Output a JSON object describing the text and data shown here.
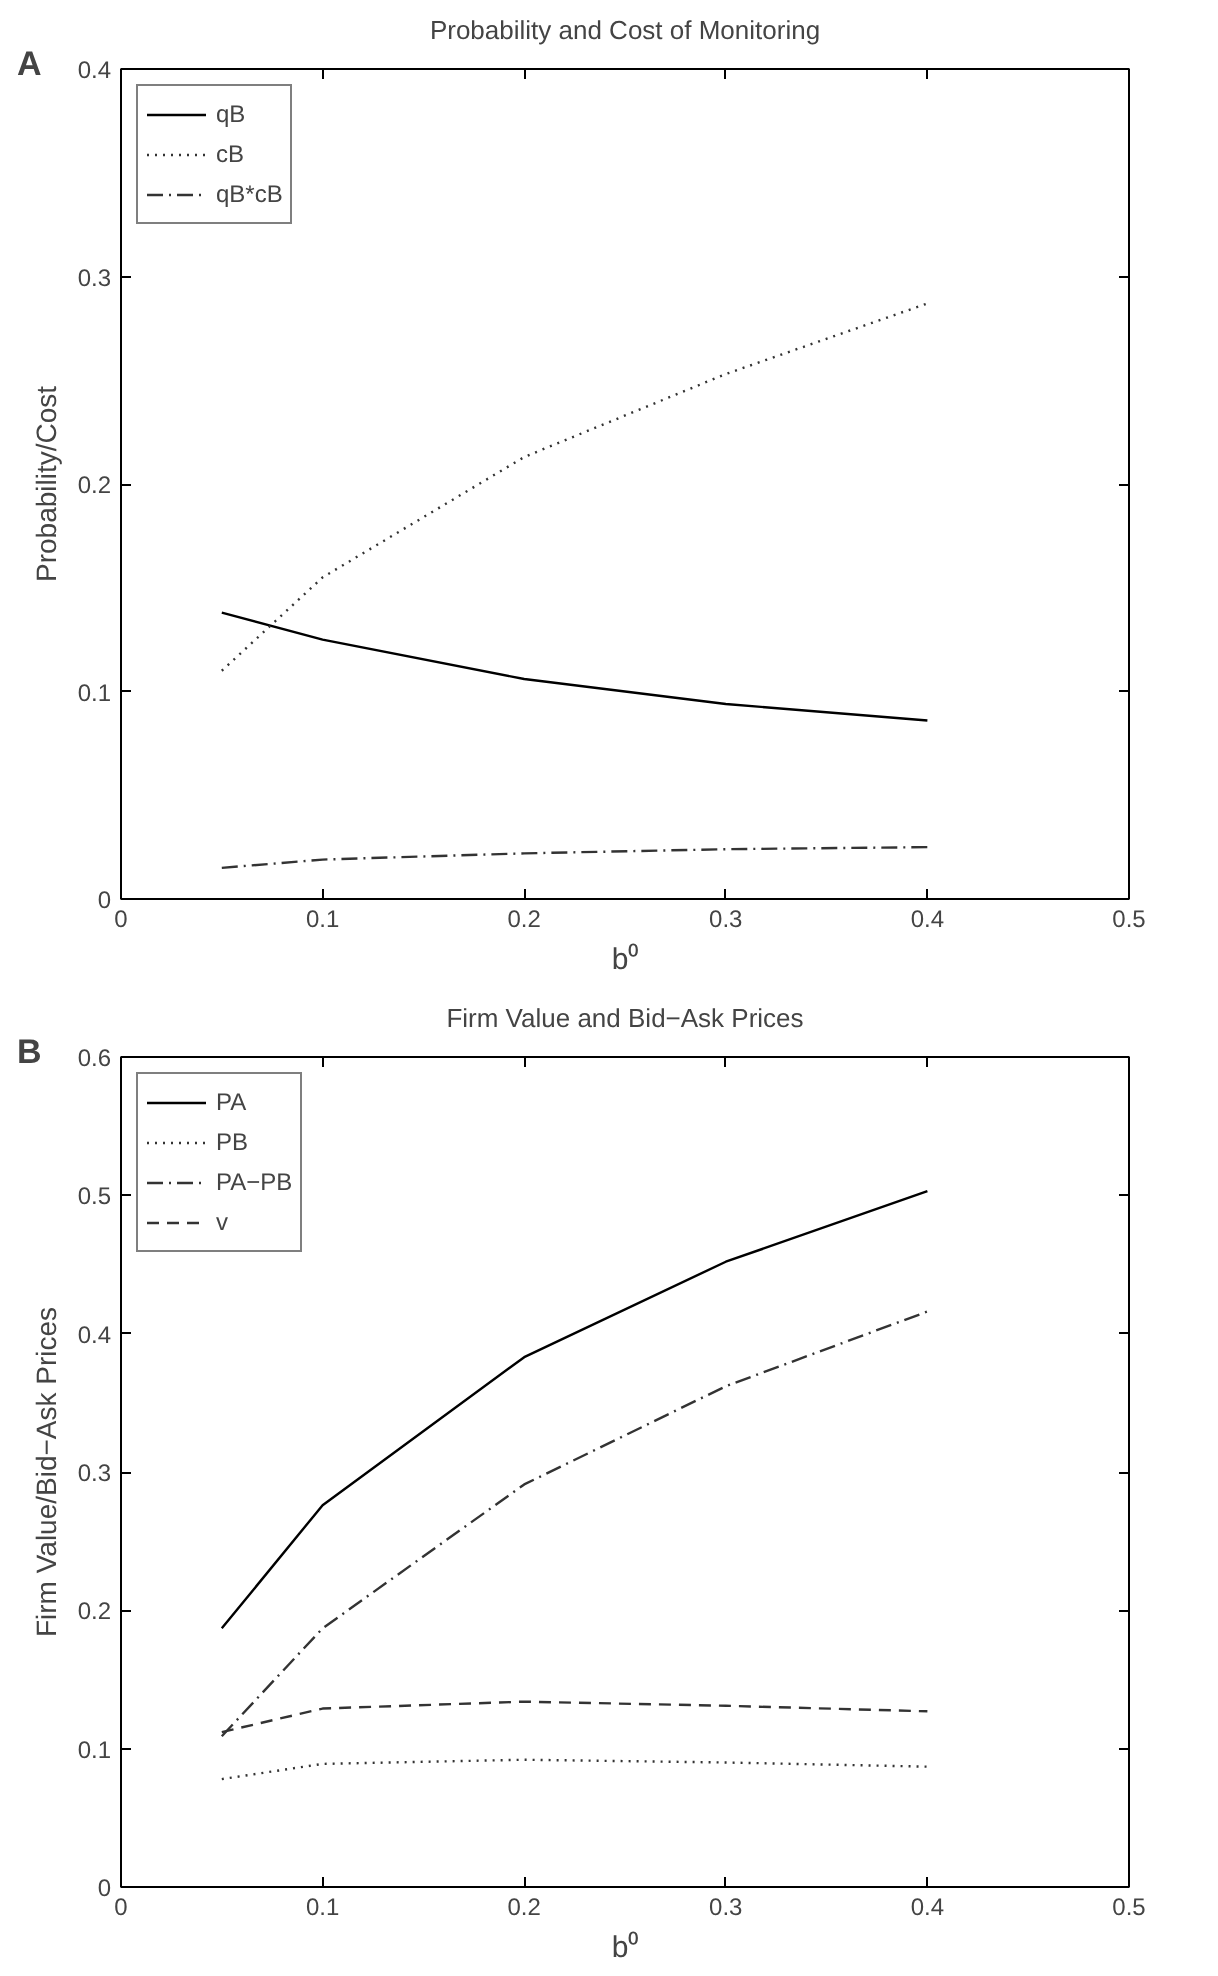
{
  "chart_data": [
    {
      "type": "line",
      "title": "Probability and Cost of Monitoring",
      "xlabel": "b⁰",
      "ylabel": "Probability/Cost",
      "annotations": [
        "A"
      ],
      "x": [
        0.05,
        0.1,
        0.2,
        0.3,
        0.4
      ],
      "xlim": [
        0,
        0.5
      ],
      "xticks": [
        0,
        0.1,
        0.2,
        0.3,
        0.4,
        0.5
      ],
      "ylim": [
        0,
        0.4
      ],
      "yticks": [
        0,
        0.1,
        0.2,
        0.3,
        0.4
      ],
      "grid": false,
      "legend": "top left",
      "marker": "none",
      "series": [
        {
          "name": "qB",
          "color": "#000000",
          "line_style": "solid",
          "values": [
            0.138,
            0.125,
            0.106,
            0.094,
            0.086
          ]
        },
        {
          "name": "cB",
          "color": "#333333",
          "line_style": "dotted",
          "values": [
            0.11,
            0.155,
            0.213,
            0.253,
            0.287
          ]
        },
        {
          "name": "qB*cB",
          "color": "#333333",
          "line_style": "dashdot",
          "values": [
            0.015,
            0.019,
            0.022,
            0.024,
            0.025
          ]
        }
      ]
    },
    {
      "type": "line",
      "title": "Firm Value and Bid−Ask Prices",
      "xlabel": "b⁰",
      "ylabel": "Firm Value/Bid−Ask Prices",
      "annotations": [
        "B"
      ],
      "x": [
        0.05,
        0.1,
        0.2,
        0.3,
        0.4
      ],
      "xlim": [
        0,
        0.5
      ],
      "xticks": [
        0,
        0.1,
        0.2,
        0.3,
        0.4,
        0.5
      ],
      "ylim": [
        0,
        0.6
      ],
      "yticks": [
        0,
        0.1,
        0.2,
        0.3,
        0.4,
        0.5,
        0.6
      ],
      "grid": false,
      "legend": "top left",
      "marker": "none",
      "series": [
        {
          "name": "PA",
          "color": "#000000",
          "line_style": "solid",
          "values": [
            0.187,
            0.276,
            0.383,
            0.452,
            0.503
          ]
        },
        {
          "name": "PB",
          "color": "#333333",
          "line_style": "dotted",
          "values": [
            0.078,
            0.089,
            0.092,
            0.09,
            0.087
          ]
        },
        {
          "name": "PA−PB",
          "color": "#333333",
          "line_style": "dashdot",
          "values": [
            0.109,
            0.187,
            0.291,
            0.362,
            0.416
          ]
        },
        {
          "name": "v",
          "color": "#333333",
          "line_style": "dashed",
          "values": [
            0.112,
            0.129,
            0.134,
            0.131,
            0.127
          ]
        }
      ]
    }
  ]
}
